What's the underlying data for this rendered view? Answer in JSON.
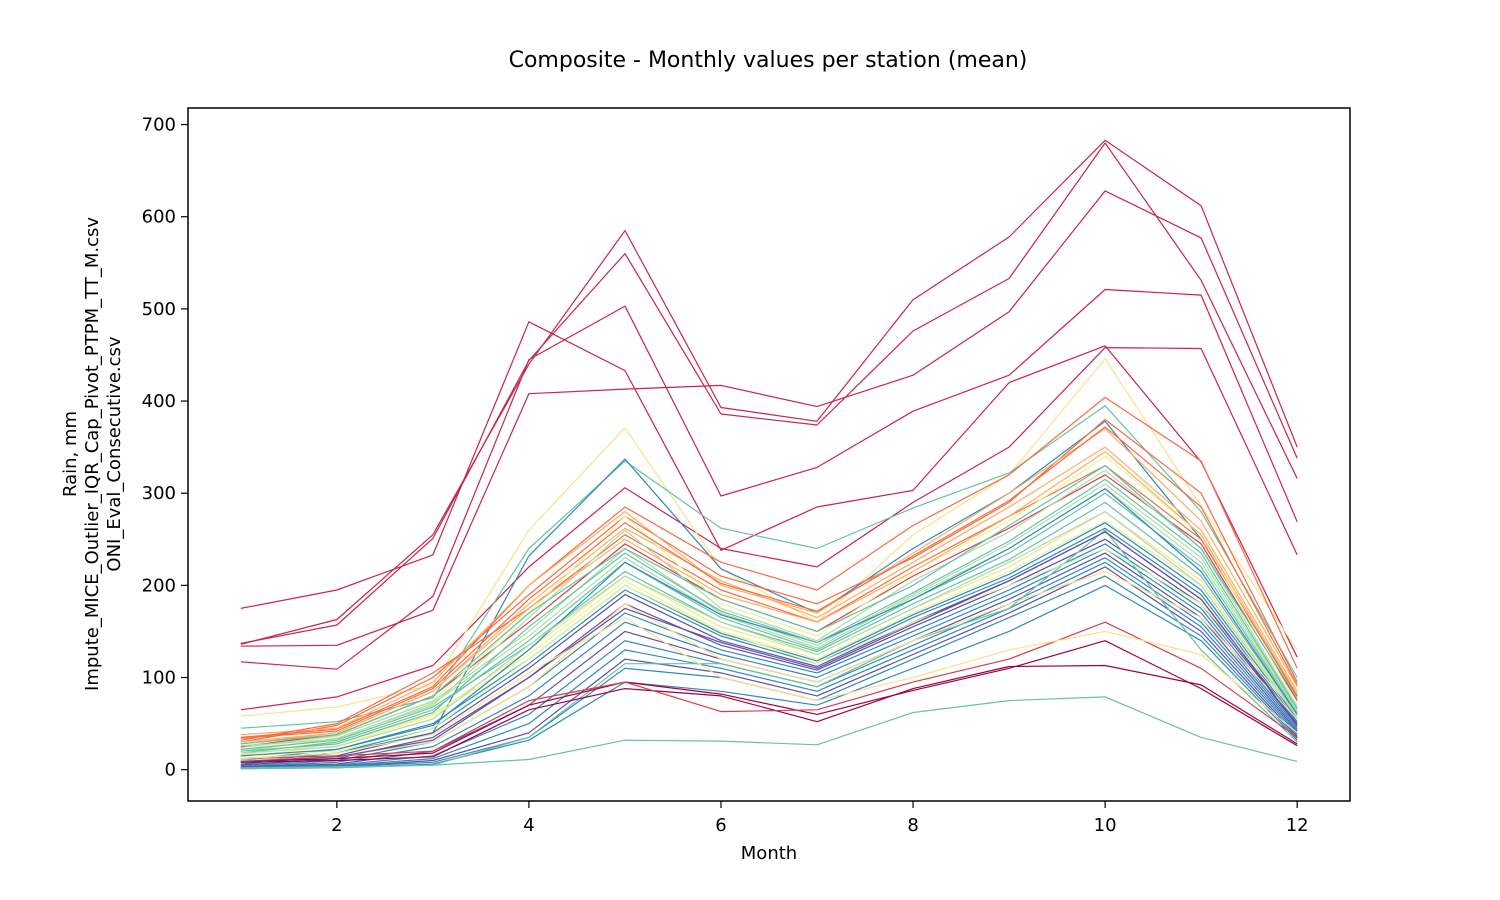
{
  "chart_data": {
    "type": "line",
    "title": "Composite - Monthly values per station (mean)",
    "xlabel": "Month",
    "ylabel_lines": [
      "Rain, mm",
      "Impute_MICE_Outlier_IQR_Cap_Pivot_PTPM_TT_M.csv",
      "ONI_Eval_Consecutive.csv"
    ],
    "x": [
      1,
      2,
      3,
      4,
      5,
      6,
      7,
      8,
      9,
      10,
      11,
      12
    ],
    "xlim": [
      0.45,
      12.55
    ],
    "ylim": [
      -34,
      718
    ],
    "xticks": [
      2,
      4,
      6,
      8,
      10,
      12
    ],
    "yticks": [
      0,
      100,
      200,
      300,
      400,
      500,
      600,
      700
    ],
    "grid": false,
    "legend": "none",
    "colormap": [
      "#9e0142",
      "#d53e4f",
      "#f46d43",
      "#fdae61",
      "#fee08b",
      "#e6f598",
      "#abdda4",
      "#66c2a5",
      "#3288bd",
      "#5e4fa2"
    ],
    "series": [
      {
        "color": "#c8244d",
        "values": [
          136,
          163,
          255,
          440,
          585,
          393,
          378,
          510,
          578,
          683,
          612,
          350
        ]
      },
      {
        "color": "#c8244d",
        "values": [
          137,
          157,
          251,
          444,
          560,
          386,
          374,
          476,
          533,
          680,
          531,
          316
        ]
      },
      {
        "color": "#c8244d",
        "values": [
          175,
          195,
          233,
          486,
          433,
          238,
          285,
          303,
          420,
          460,
          334,
          122
        ]
      },
      {
        "color": "#c8244d",
        "values": [
          134,
          135,
          173,
          408,
          413,
          417,
          394,
          428,
          497,
          628,
          577,
          338
        ]
      },
      {
        "color": "#c8244d",
        "values": [
          117,
          109,
          188,
          445,
          503,
          297,
          328,
          389,
          428,
          521,
          515,
          269
        ]
      },
      {
        "color": "#c8244d",
        "values": [
          65,
          79,
          113,
          220,
          306,
          240,
          220,
          290,
          350,
          458,
          457,
          233
        ]
      },
      {
        "color": "#fee08b",
        "values": [
          58,
          68,
          92,
          260,
          371,
          218,
          160,
          255,
          320,
          446,
          286,
          130
        ]
      },
      {
        "color": "#66c2a5",
        "values": [
          45,
          52,
          78,
          240,
          335,
          262,
          240,
          284,
          322,
          395,
          280,
          100
        ]
      },
      {
        "color": "#3288bd",
        "values": [
          12,
          18,
          40,
          232,
          337,
          218,
          170,
          240,
          300,
          378,
          250,
          80
        ]
      },
      {
        "color": "#f46d43",
        "values": [
          35,
          44,
          90,
          200,
          285,
          225,
          195,
          265,
          320,
          404,
          335,
          110
        ]
      },
      {
        "color": "#f46d43",
        "values": [
          30,
          48,
          100,
          190,
          275,
          210,
          180,
          230,
          290,
          380,
          300,
          95
        ]
      },
      {
        "color": "#fdae61",
        "values": [
          38,
          45,
          95,
          200,
          280,
          200,
          170,
          235,
          300,
          370,
          270,
          90
        ]
      },
      {
        "color": "#fdae61",
        "values": [
          28,
          40,
          85,
          180,
          262,
          205,
          165,
          225,
          285,
          350,
          260,
          85
        ]
      },
      {
        "color": "#f46d43",
        "values": [
          32,
          50,
          105,
          175,
          255,
          195,
          160,
          220,
          275,
          330,
          250,
          80
        ]
      },
      {
        "color": "#d53e4f",
        "values": [
          25,
          38,
          80,
          160,
          245,
          185,
          150,
          210,
          262,
          320,
          245,
          75
        ]
      },
      {
        "color": "#e6f598",
        "values": [
          22,
          36,
          75,
          170,
          275,
          180,
          145,
          215,
          270,
          340,
          255,
          70
        ]
      },
      {
        "color": "#abdda4",
        "values": [
          20,
          34,
          70,
          165,
          260,
          175,
          140,
          205,
          258,
          325,
          240,
          68
        ]
      },
      {
        "color": "#abdda4",
        "values": [
          24,
          37,
          74,
          150,
          240,
          170,
          135,
          190,
          245,
          310,
          230,
          65
        ]
      },
      {
        "color": "#66c2a5",
        "values": [
          18,
          30,
          65,
          140,
          225,
          165,
          130,
          185,
          235,
          300,
          220,
          62
        ]
      },
      {
        "color": "#66c2a5",
        "values": [
          22,
          32,
          68,
          135,
          215,
          160,
          128,
          180,
          228,
          290,
          210,
          60
        ]
      },
      {
        "color": "#fee08b",
        "values": [
          16,
          28,
          60,
          130,
          210,
          155,
          125,
          175,
          220,
          280,
          205,
          58
        ]
      },
      {
        "color": "#e6f598",
        "values": [
          14,
          26,
          58,
          125,
          205,
          150,
          120,
          170,
          215,
          270,
          200,
          56
        ]
      },
      {
        "color": "#3288bd",
        "values": [
          10,
          22,
          50,
          120,
          200,
          148,
          118,
          168,
          212,
          268,
          195,
          55
        ]
      },
      {
        "color": "#3288bd",
        "values": [
          8,
          18,
          45,
          115,
          195,
          145,
          115,
          165,
          208,
          262,
          190,
          52
        ]
      },
      {
        "color": "#5e4fa2",
        "values": [
          6,
          15,
          40,
          110,
          190,
          140,
          112,
          160,
          205,
          258,
          185,
          50
        ]
      },
      {
        "color": "#5e4fa2",
        "values": [
          5,
          12,
          35,
          100,
          180,
          135,
          108,
          155,
          200,
          250,
          180,
          48
        ]
      },
      {
        "color": "#3288bd",
        "values": [
          4,
          10,
          30,
          90,
          170,
          130,
          105,
          150,
          195,
          245,
          175,
          46
        ]
      },
      {
        "color": "#3288bd",
        "values": [
          3,
          8,
          25,
          80,
          160,
          125,
          100,
          145,
          190,
          240,
          170,
          44
        ]
      },
      {
        "color": "#5e4fa2",
        "values": [
          3,
          6,
          20,
          70,
          150,
          120,
          95,
          140,
          185,
          235,
          165,
          42
        ]
      },
      {
        "color": "#3288bd",
        "values": [
          2,
          5,
          15,
          60,
          140,
          115,
          90,
          135,
          180,
          230,
          160,
          40
        ]
      },
      {
        "color": "#3288bd",
        "values": [
          2,
          4,
          12,
          50,
          130,
          110,
          85,
          130,
          175,
          225,
          155,
          38
        ]
      },
      {
        "color": "#5e4fa2",
        "values": [
          2,
          3,
          10,
          40,
          120,
          105,
          80,
          125,
          170,
          220,
          150,
          36
        ]
      },
      {
        "color": "#3288bd",
        "values": [
          2,
          3,
          8,
          35,
          110,
          100,
          75,
          120,
          165,
          210,
          145,
          34
        ]
      },
      {
        "color": "#3288bd",
        "values": [
          1,
          2,
          6,
          32,
          95,
          85,
          70,
          110,
          150,
          200,
          140,
          32
        ]
      },
      {
        "color": "#66c2a5",
        "values": [
          1,
          2,
          5,
          35,
          115,
          115,
          90,
          140,
          175,
          260,
          130,
          30
        ]
      },
      {
        "color": "#9e0142",
        "values": [
          8,
          10,
          14,
          65,
          88,
          80,
          52,
          88,
          112,
          113,
          92,
          28
        ]
      },
      {
        "color": "#9e0142",
        "values": [
          9,
          12,
          18,
          70,
          95,
          82,
          60,
          86,
          110,
          140,
          88,
          26
        ]
      },
      {
        "color": "#d53e4f",
        "values": [
          12,
          15,
          20,
          75,
          95,
          63,
          65,
          95,
          120,
          160,
          110,
          35
        ]
      },
      {
        "color": "#66c2a5",
        "values": [
          2,
          3,
          5,
          11,
          32,
          31,
          27,
          62,
          75,
          79,
          35,
          9
        ]
      },
      {
        "color": "#fee08b",
        "values": [
          10,
          14,
          30,
          90,
          180,
          120,
          95,
          140,
          180,
          215,
          165,
          55
        ]
      },
      {
        "color": "#e6f598",
        "values": [
          15,
          20,
          45,
          120,
          200,
          150,
          115,
          160,
          200,
          240,
          180,
          60
        ]
      },
      {
        "color": "#abdda4",
        "values": [
          26,
          33,
          72,
          145,
          230,
          168,
          132,
          188,
          240,
          305,
          225,
          63
        ]
      },
      {
        "color": "#f46d43",
        "values": [
          34,
          42,
          88,
          185,
          268,
          202,
          172,
          232,
          292,
          372,
          285,
          92
        ]
      },
      {
        "color": "#fdae61",
        "values": [
          30,
          40,
          85,
          175,
          250,
          190,
          160,
          215,
          275,
          345,
          255,
          82
        ]
      },
      {
        "color": "#66c2a5",
        "values": [
          28,
          38,
          80,
          170,
          240,
          185,
          150,
          200,
          265,
          330,
          240,
          78
        ]
      },
      {
        "color": "#3288bd",
        "values": [
          15,
          22,
          48,
          130,
          225,
          168,
          138,
          185,
          240,
          305,
          215,
          60
        ]
      },
      {
        "color": "#5e4fa2",
        "values": [
          9,
          14,
          32,
          100,
          175,
          138,
          110,
          158,
          205,
          258,
          185,
          48
        ]
      },
      {
        "color": "#fee08b",
        "values": [
          12,
          18,
          38,
          105,
          165,
          100,
          75,
          100,
          130,
          150,
          125,
          40
        ]
      },
      {
        "color": "#abdda4",
        "values": [
          18,
          25,
          55,
          135,
          210,
          160,
          125,
          175,
          225,
          280,
          200,
          58
        ]
      },
      {
        "color": "#66c2a5",
        "values": [
          20,
          28,
          62,
          155,
          235,
          172,
          138,
          192,
          248,
          315,
          235,
          66
        ]
      }
    ]
  }
}
